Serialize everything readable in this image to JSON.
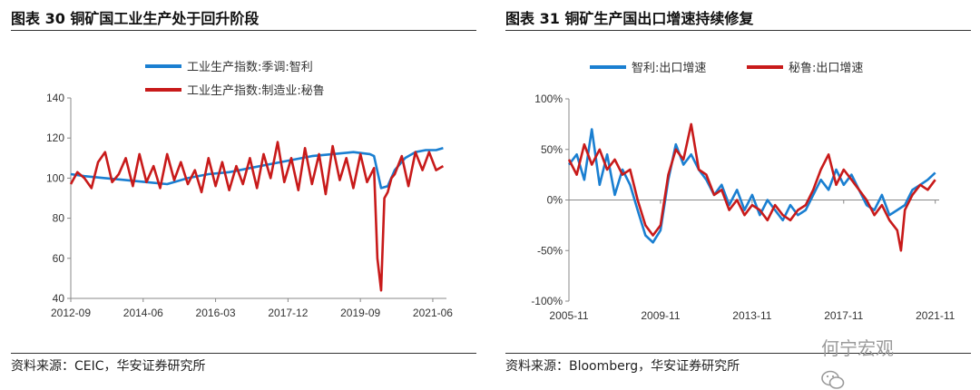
{
  "left": {
    "title": "图表 30 铜矿国工业生产处于回升阶段",
    "source": "资料来源：CEIC，华安证券研究所"
  },
  "right": {
    "title": "图表 31 铜矿生产国出口增速持续修复",
    "source": "资料来源：Bloomberg，华安证券研究所"
  },
  "watermark": {
    "text": "何宁宏观",
    "icon": "wechat-icon"
  },
  "chart_data": [
    {
      "type": "line",
      "title": "图表 30 铜矿国工业生产处于回升阶段",
      "ylim": [
        40,
        140
      ],
      "yticks": [
        40,
        60,
        80,
        100,
        120,
        140
      ],
      "ytick_labels": [
        "40",
        "60",
        "80",
        "100",
        "120",
        "140"
      ],
      "x_range": [
        2012.67,
        2021.75
      ],
      "xticks": [
        2012.67,
        2014.42,
        2016.17,
        2017.92,
        2019.67,
        2021.42
      ],
      "xtick_labels": [
        "2012-09",
        "2014-06",
        "2016-03",
        "2017-12",
        "2019-09",
        "2021-06"
      ],
      "legend_position": "top-center",
      "series": [
        {
          "name": "工业生产指数:季调:智利",
          "color": "#1a7fd1",
          "x": [
            2012.67,
            2013.0,
            2013.5,
            2014.0,
            2014.5,
            2015.0,
            2015.5,
            2016.0,
            2016.5,
            2017.0,
            2017.5,
            2018.0,
            2018.5,
            2019.0,
            2019.5,
            2019.9,
            2020.0,
            2020.17,
            2020.33,
            2020.5,
            2020.75,
            2021.0,
            2021.25,
            2021.5,
            2021.67
          ],
          "values": [
            102,
            101,
            100,
            99,
            98,
            97,
            100,
            102,
            103,
            105,
            107,
            109,
            111,
            112,
            113,
            112,
            111,
            95,
            96,
            104,
            110,
            113,
            114,
            114,
            115
          ]
        },
        {
          "name": "工业生产指数:制造业:秘鲁",
          "color": "#c81a1a",
          "x": [
            2012.67,
            2012.83,
            2013.0,
            2013.17,
            2013.33,
            2013.5,
            2013.67,
            2013.83,
            2014.0,
            2014.17,
            2014.33,
            2014.5,
            2014.67,
            2014.83,
            2015.0,
            2015.17,
            2015.33,
            2015.5,
            2015.67,
            2015.83,
            2016.0,
            2016.17,
            2016.33,
            2016.5,
            2016.67,
            2016.83,
            2017.0,
            2017.17,
            2017.33,
            2017.5,
            2017.67,
            2017.83,
            2018.0,
            2018.17,
            2018.33,
            2018.5,
            2018.67,
            2018.83,
            2019.0,
            2019.17,
            2019.33,
            2019.5,
            2019.67,
            2019.83,
            2020.0,
            2020.08,
            2020.17,
            2020.25,
            2020.33,
            2020.42,
            2020.5,
            2020.67,
            2020.83,
            2021.0,
            2021.17,
            2021.33,
            2021.5,
            2021.67
          ],
          "values": [
            97,
            103,
            100,
            95,
            108,
            113,
            98,
            102,
            110,
            96,
            112,
            98,
            106,
            95,
            112,
            99,
            108,
            97,
            104,
            93,
            110,
            96,
            108,
            94,
            106,
            97,
            110,
            95,
            112,
            100,
            118,
            98,
            110,
            94,
            115,
            97,
            112,
            92,
            116,
            99,
            110,
            95,
            112,
            98,
            105,
            60,
            44,
            90,
            93,
            100,
            102,
            111,
            96,
            113,
            104,
            113,
            104,
            106
          ]
        }
      ]
    },
    {
      "type": "line",
      "title": "图表 31 铜矿生产国出口增速持续修复",
      "ylim": [
        -100,
        100
      ],
      "yticks": [
        -100,
        -50,
        0,
        50,
        100
      ],
      "ytick_labels": [
        "-100%",
        "-50%",
        "0%",
        "50%",
        "100%"
      ],
      "x_range": [
        2005.83,
        2022.0
      ],
      "xticks": [
        2005.83,
        2009.83,
        2013.83,
        2017.83,
        2021.83
      ],
      "xtick_labels": [
        "2005-11",
        "2009-11",
        "2013-11",
        "2017-11",
        "2021-11"
      ],
      "legend_position": "top-center",
      "series": [
        {
          "name": "智利:出口增速",
          "color": "#1a7fd1",
          "x": [
            2005.83,
            2006.17,
            2006.5,
            2006.83,
            2007.17,
            2007.5,
            2007.83,
            2008.17,
            2008.5,
            2008.83,
            2009.17,
            2009.5,
            2009.83,
            2010.17,
            2010.5,
            2010.83,
            2011.17,
            2011.5,
            2011.83,
            2012.17,
            2012.5,
            2012.83,
            2013.17,
            2013.5,
            2013.83,
            2014.17,
            2014.5,
            2014.83,
            2015.17,
            2015.5,
            2015.83,
            2016.17,
            2016.5,
            2016.83,
            2017.17,
            2017.5,
            2017.83,
            2018.17,
            2018.5,
            2018.83,
            2019.17,
            2019.5,
            2019.83,
            2020.17,
            2020.5,
            2020.83,
            2021.17,
            2021.5,
            2021.83
          ],
          "values": [
            35,
            45,
            20,
            70,
            15,
            45,
            5,
            30,
            15,
            -10,
            -35,
            -42,
            -30,
            20,
            55,
            35,
            45,
            30,
            20,
            5,
            15,
            -5,
            10,
            -10,
            5,
            -15,
            0,
            -10,
            -20,
            -5,
            -15,
            -10,
            5,
            20,
            10,
            30,
            15,
            25,
            10,
            -5,
            -10,
            5,
            -15,
            -10,
            -5,
            10,
            15,
            20,
            27
          ]
        },
        {
          "name": "秘鲁:出口增速",
          "color": "#c81a1a",
          "x": [
            2005.83,
            2006.17,
            2006.5,
            2006.83,
            2007.17,
            2007.5,
            2007.83,
            2008.17,
            2008.5,
            2008.83,
            2009.17,
            2009.5,
            2009.83,
            2010.17,
            2010.5,
            2010.83,
            2011.17,
            2011.5,
            2011.83,
            2012.17,
            2012.5,
            2012.83,
            2013.17,
            2013.5,
            2013.83,
            2014.17,
            2014.5,
            2014.83,
            2015.17,
            2015.5,
            2015.83,
            2016.17,
            2016.5,
            2016.83,
            2017.17,
            2017.5,
            2017.83,
            2018.17,
            2018.5,
            2018.83,
            2019.17,
            2019.5,
            2019.83,
            2020.17,
            2020.33,
            2020.5,
            2020.83,
            2021.17,
            2021.5,
            2021.83
          ],
          "values": [
            40,
            25,
            55,
            35,
            50,
            30,
            40,
            25,
            30,
            0,
            -25,
            -35,
            -25,
            25,
            50,
            40,
            75,
            30,
            25,
            5,
            10,
            -10,
            0,
            -15,
            -5,
            -10,
            -20,
            -5,
            -15,
            -20,
            -10,
            -5,
            10,
            30,
            45,
            15,
            30,
            20,
            10,
            0,
            -15,
            -5,
            -20,
            -30,
            -50,
            -10,
            5,
            15,
            10,
            20
          ]
        }
      ]
    }
  ]
}
